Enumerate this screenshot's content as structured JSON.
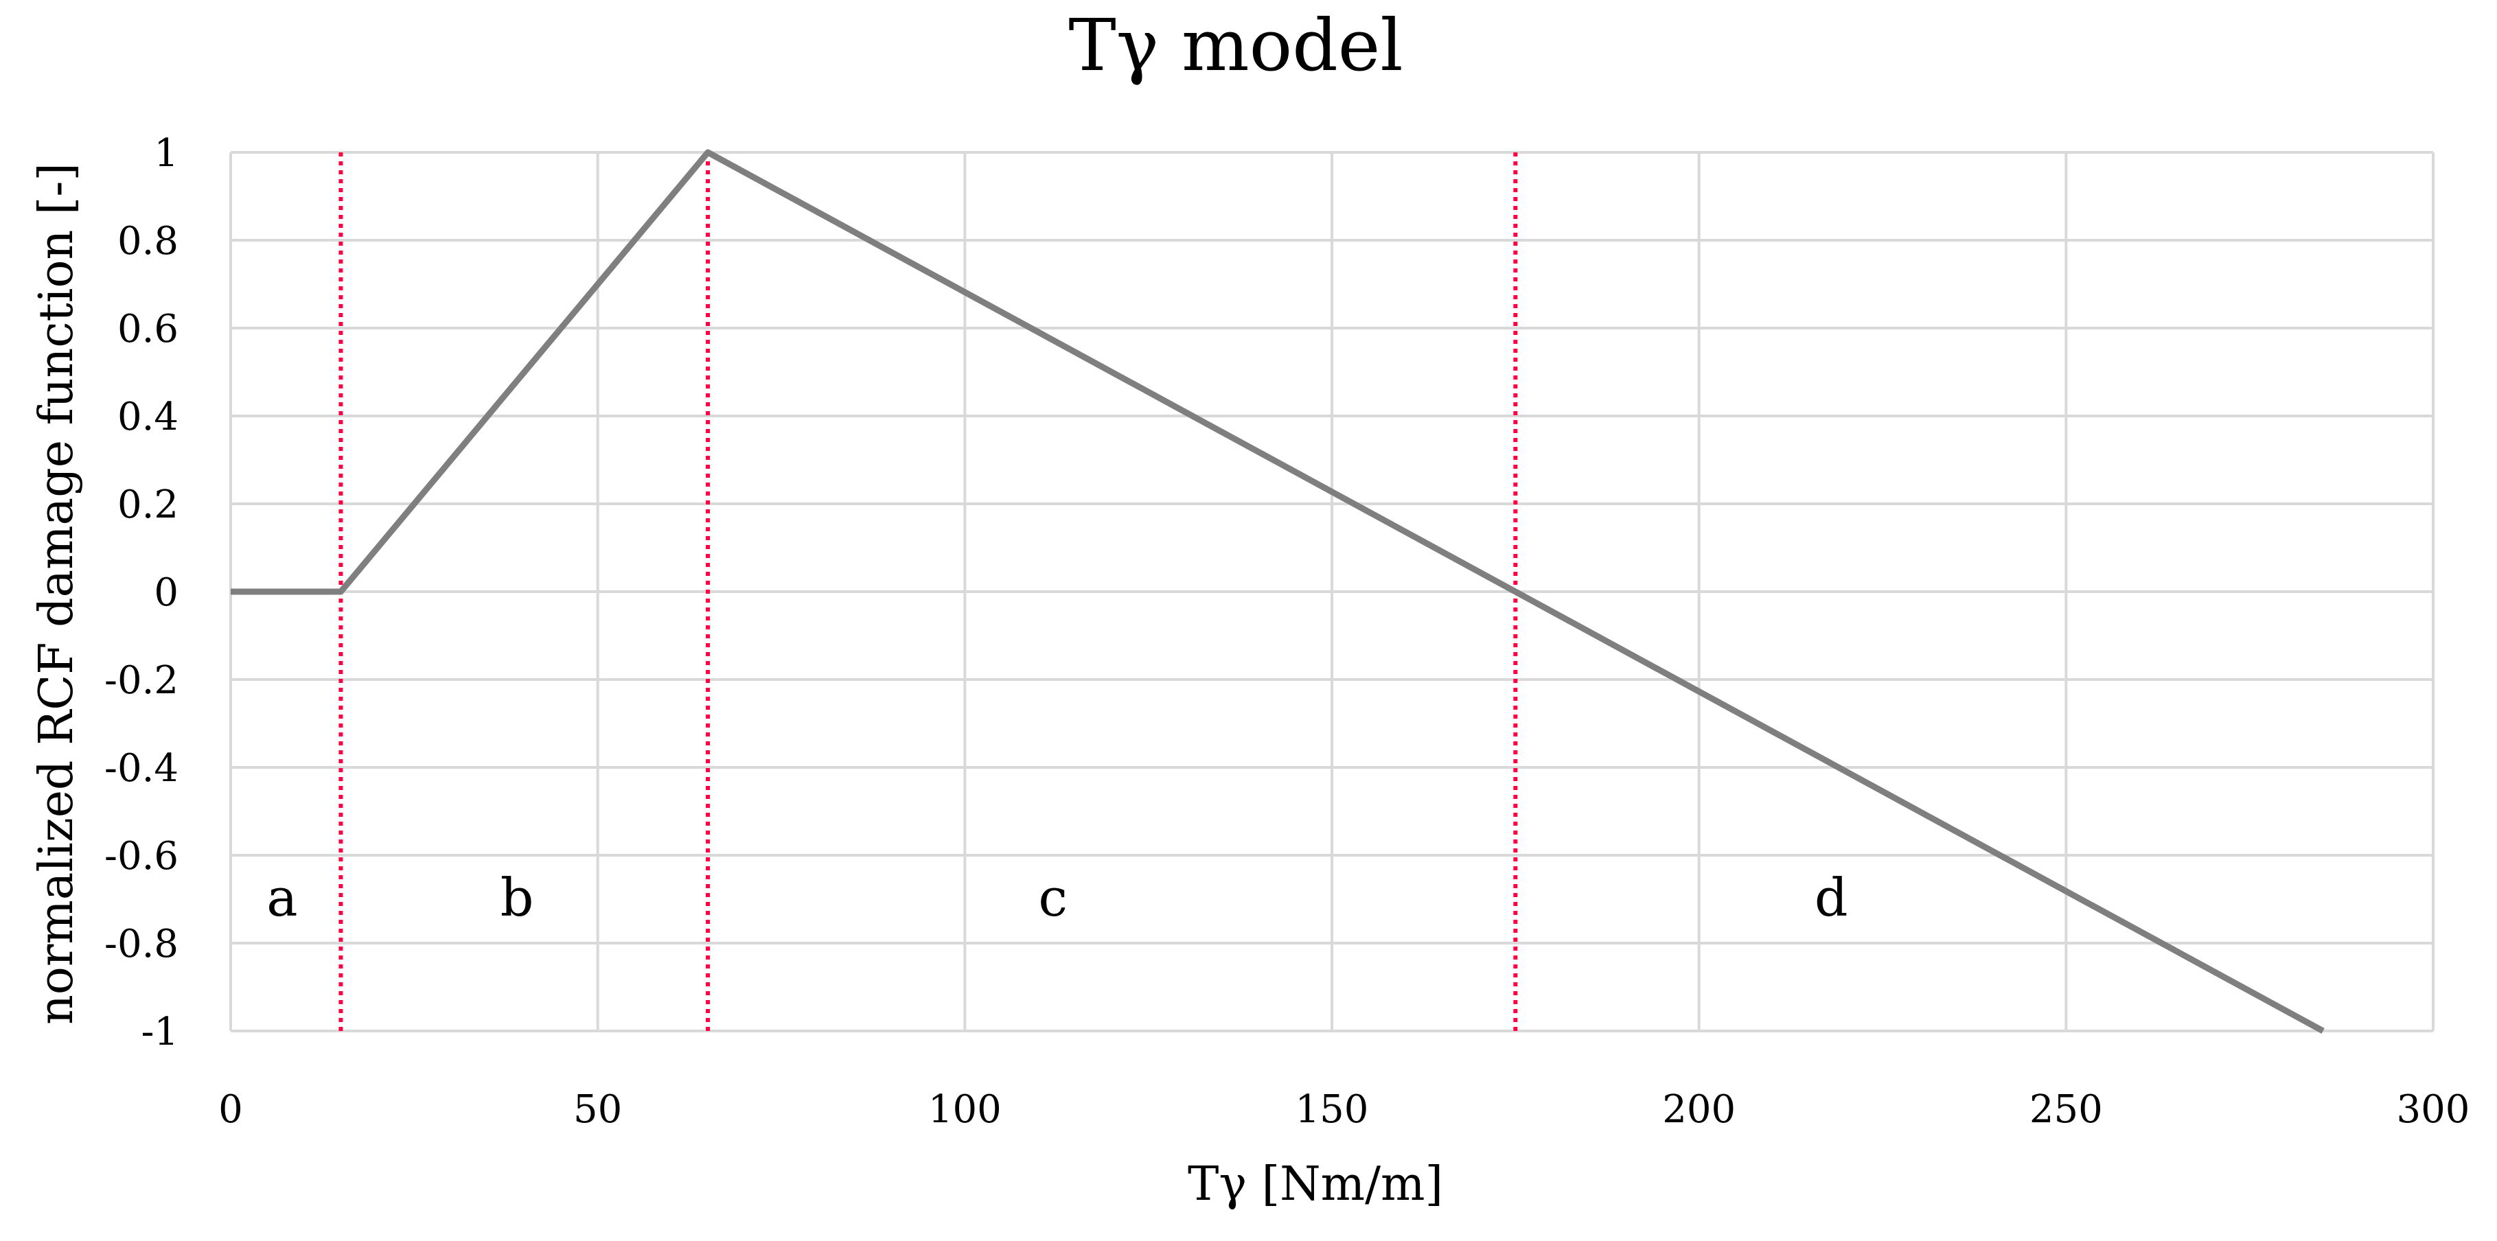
{
  "chart_data": {
    "type": "line",
    "title": "Tγ model",
    "xlabel": "Tγ [Nm/m]",
    "ylabel": "normalized RCF damage function [-]",
    "xlim": [
      0,
      300
    ],
    "ylim": [
      -1,
      1
    ],
    "xticks": [
      0,
      50,
      100,
      150,
      200,
      250,
      300
    ],
    "yticks": [
      1,
      0.8,
      0.6,
      0.4,
      0.2,
      0,
      -0.2,
      -0.4,
      -0.6,
      -0.8,
      -1
    ],
    "ytick_labels": [
      "1",
      "0.8",
      "0.6",
      "0.4",
      "0.2",
      "0",
      "-0.2",
      "-0.4",
      "-0.6",
      "-0.8",
      "-1"
    ],
    "grid": true,
    "series": [
      {
        "x": [
          0,
          15,
          65,
          285
        ],
        "y": [
          0,
          0,
          1,
          -1
        ],
        "color": "#7f7f7f"
      }
    ],
    "boundaries": {
      "x": [
        15,
        65,
        175
      ],
      "color": "#ff0040",
      "style": "dotted"
    },
    "regions": [
      {
        "label": "a",
        "x": 7,
        "y": -0.7
      },
      {
        "label": "b",
        "x": 39,
        "y": -0.7
      },
      {
        "label": "c",
        "x": 112,
        "y": -0.7
      },
      {
        "label": "d",
        "x": 218,
        "y": -0.7
      }
    ]
  }
}
